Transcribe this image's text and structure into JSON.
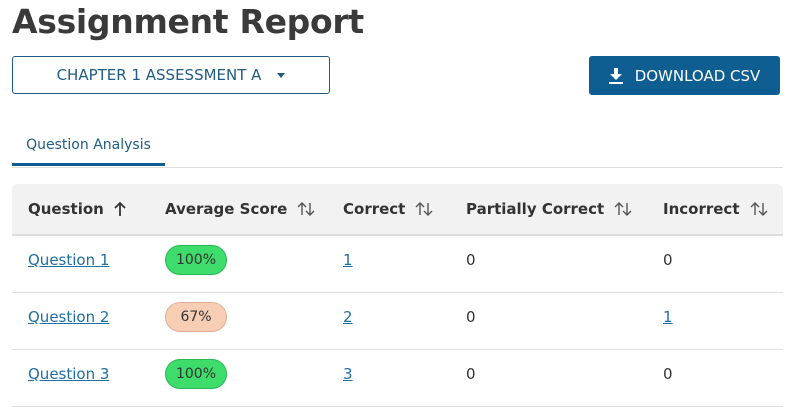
{
  "page": {
    "title": "Assignment Report"
  },
  "toolbar": {
    "assignment_select": "CHAPTER 1 ASSESSMENT A",
    "download_label": "DOWNLOAD CSV"
  },
  "tabs": [
    {
      "label": "Question Analysis",
      "active": true
    }
  ],
  "table": {
    "headers": [
      "Question",
      "Average Score",
      "Correct",
      "Partially Correct",
      "Incorrect"
    ],
    "sort": {
      "column": "Question",
      "direction": "ascending"
    },
    "rows": [
      {
        "question": "Question 1",
        "average_score": "100%",
        "score_level": "high",
        "correct": "1",
        "partially_correct": "0",
        "incorrect": "0"
      },
      {
        "question": "Question 2",
        "average_score": "67%",
        "score_level": "mid",
        "correct": "2",
        "partially_correct": "0",
        "incorrect": "1"
      },
      {
        "question": "Question 3",
        "average_score": "100%",
        "score_level": "high",
        "correct": "3",
        "partially_correct": "0",
        "incorrect": "0"
      }
    ]
  },
  "colors": {
    "primary": "#0e5e91",
    "link": "#1f6fa3",
    "score_high": "#3ddc6b",
    "score_mid": "#f7cdb4"
  }
}
